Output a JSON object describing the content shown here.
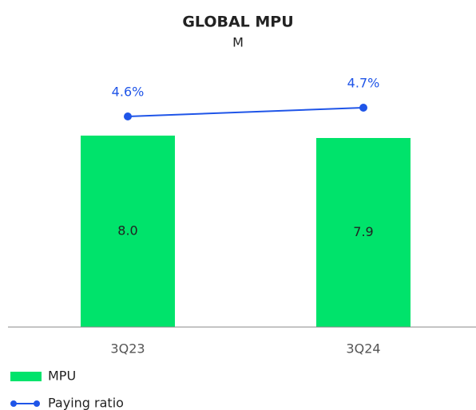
{
  "chart_data": {
    "type": "bar",
    "title": "GLOBAL MPU",
    "subtitle": "M",
    "categories": [
      "3Q23",
      "3Q24"
    ],
    "series": [
      {
        "name": "MPU",
        "type": "bar",
        "color": "#00e36b",
        "values": [
          8.0,
          7.9
        ],
        "value_labels": [
          "8.0",
          "7.9"
        ]
      },
      {
        "name": "Paying ratio",
        "type": "line",
        "axis": "y2",
        "color": "#1f55e8",
        "values": [
          4.6,
          4.7
        ],
        "value_labels": [
          "4.6%",
          "4.7%"
        ]
      }
    ],
    "ylim": [
      0,
      11
    ],
    "y2lim": [
      2.2,
      5.2
    ]
  }
}
